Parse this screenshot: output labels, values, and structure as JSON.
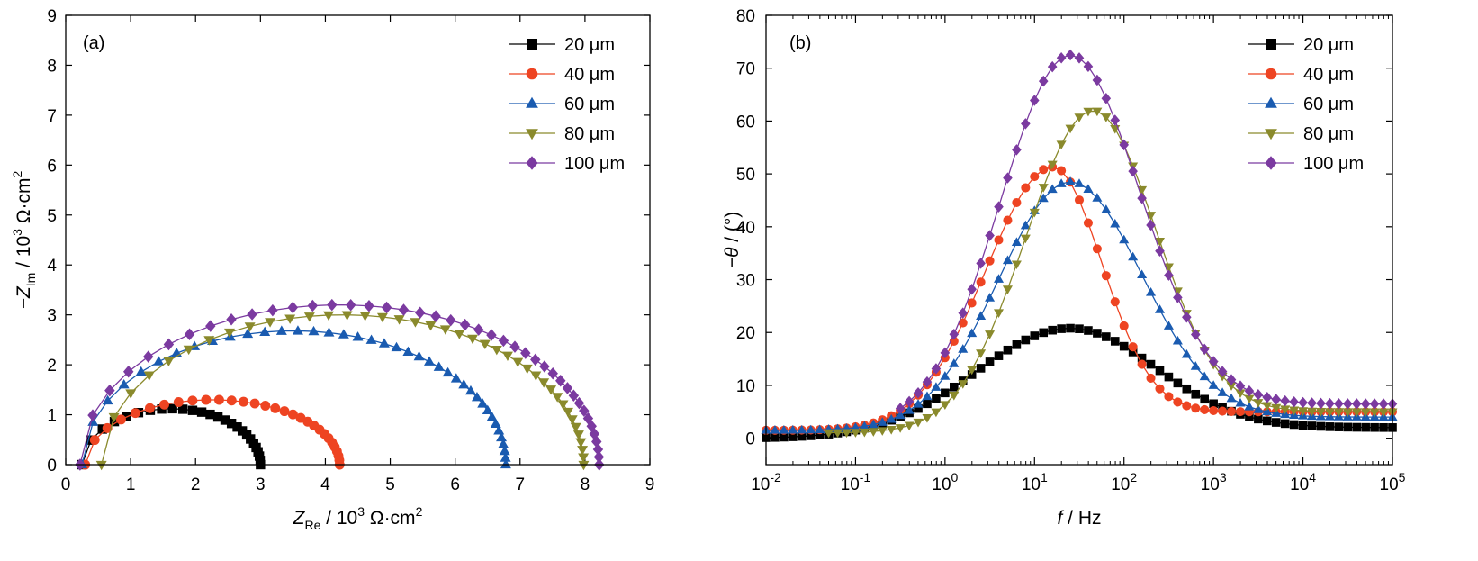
{
  "chart_data": [
    {
      "type": "scatter",
      "panel_label": "(a)",
      "xlabel": {
        "main": "Z",
        "sub": "Re",
        "rest": " / 10",
        "sup": "3",
        "unit": " Ω·cm",
        "sup2": "2"
      },
      "ylabel": {
        "main": "−Z",
        "sub": "Im",
        "rest": " / 10",
        "sup": "3",
        "unit": " Ω·cm",
        "sup2": "2"
      },
      "xlim": [
        0,
        9
      ],
      "ylim": [
        0,
        9
      ],
      "xticks": [
        "0",
        "1",
        "2",
        "3",
        "4",
        "5",
        "6",
        "7",
        "8",
        "9"
      ],
      "yticks": [
        "0",
        "1",
        "2",
        "3",
        "4",
        "5",
        "6",
        "7",
        "8",
        "9"
      ],
      "legend_position": "top-right",
      "series": [
        {
          "name": "20 μm",
          "color": "#000000",
          "marker": "square",
          "r0": 0.25,
          "r1": 3.0,
          "peak": 1.12,
          "n": 26,
          "phase": 0.6
        },
        {
          "name": "40 μm",
          "color": "#ee4422",
          "marker": "circle",
          "r0": 0.3,
          "r1": 4.22,
          "peak": 1.3,
          "n": 30,
          "phase": 0.62
        },
        {
          "name": "60 μm",
          "color": "#1a5bb0",
          "marker": "triangle-up",
          "r0": 0.25,
          "r1": 6.78,
          "peak": 2.68,
          "n": 40,
          "phase": 0.62
        },
        {
          "name": "80 μm",
          "color": "#8a8a2c",
          "marker": "triangle-down",
          "r0": 0.55,
          "r1": 7.98,
          "peak": 3.0,
          "n": 40,
          "phase": 0.62
        },
        {
          "name": "100 μm",
          "color": "#7b3aa0",
          "marker": "diamond",
          "r0": 0.22,
          "r1": 8.22,
          "peak": 3.2,
          "n": 42,
          "phase": 0.62
        }
      ]
    },
    {
      "type": "scatter",
      "panel_label": "(b)",
      "xscale": "log",
      "xlabel": {
        "main": "f",
        "rest": " / Hz"
      },
      "ylabel": {
        "main": "−θ",
        "rest": " / (°)"
      },
      "xlim": [
        0.01,
        100000
      ],
      "ylim": [
        -5,
        80
      ],
      "xticks": [
        {
          "base": "10",
          "exp": "-2"
        },
        {
          "base": "10",
          "exp": "-1"
        },
        {
          "base": "10",
          "exp": "0"
        },
        {
          "base": "10",
          "exp": "1"
        },
        {
          "base": "10",
          "exp": "2"
        },
        {
          "base": "10",
          "exp": "3"
        },
        {
          "base": "10",
          "exp": "4"
        },
        {
          "base": "10",
          "exp": "5"
        }
      ],
      "yticks": [
        "0",
        "10",
        "20",
        "30",
        "40",
        "50",
        "60",
        "70",
        "80"
      ],
      "legend_position": "top-right",
      "series": [
        {
          "name": "20 μm",
          "color": "#000000",
          "marker": "square",
          "peak_f": 25,
          "peak": 20.8,
          "low": 0.0,
          "high": 2.0,
          "wl": 1.05,
          "wr": 0.95,
          "lf": -2.0,
          "hf": 5
        },
        {
          "name": "40 μm",
          "color": "#ee4422",
          "marker": "circle",
          "peak_f": 16,
          "peak": 51.3,
          "low": 1.5,
          "high": 5.0,
          "wl": 0.75,
          "wr": 0.55,
          "lf": -2.0,
          "hf": 5
        },
        {
          "name": "60 μm",
          "color": "#1a5bb0",
          "marker": "triangle-up",
          "peak_f": 25,
          "peak": 48.5,
          "low": 1.5,
          "high": 4.0,
          "wl": 0.8,
          "wr": 0.8,
          "lf": -2.0,
          "hf": 5
        },
        {
          "name": "80 μm",
          "color": "#8a8a2c",
          "marker": "triangle-down",
          "peak_f": 45,
          "peak": 62.0,
          "low": 1.0,
          "high": 5.0,
          "wl": 0.75,
          "wr": 0.7,
          "lf": -1.3,
          "hf": 5
        },
        {
          "name": "100 μm",
          "color": "#7b3aa0",
          "marker": "diamond",
          "peak_f": 25,
          "peak": 72.5,
          "low": 2.0,
          "high": 6.5,
          "wl": 0.78,
          "wr": 0.78,
          "lf": -0.5,
          "hf": 5
        }
      ]
    }
  ]
}
